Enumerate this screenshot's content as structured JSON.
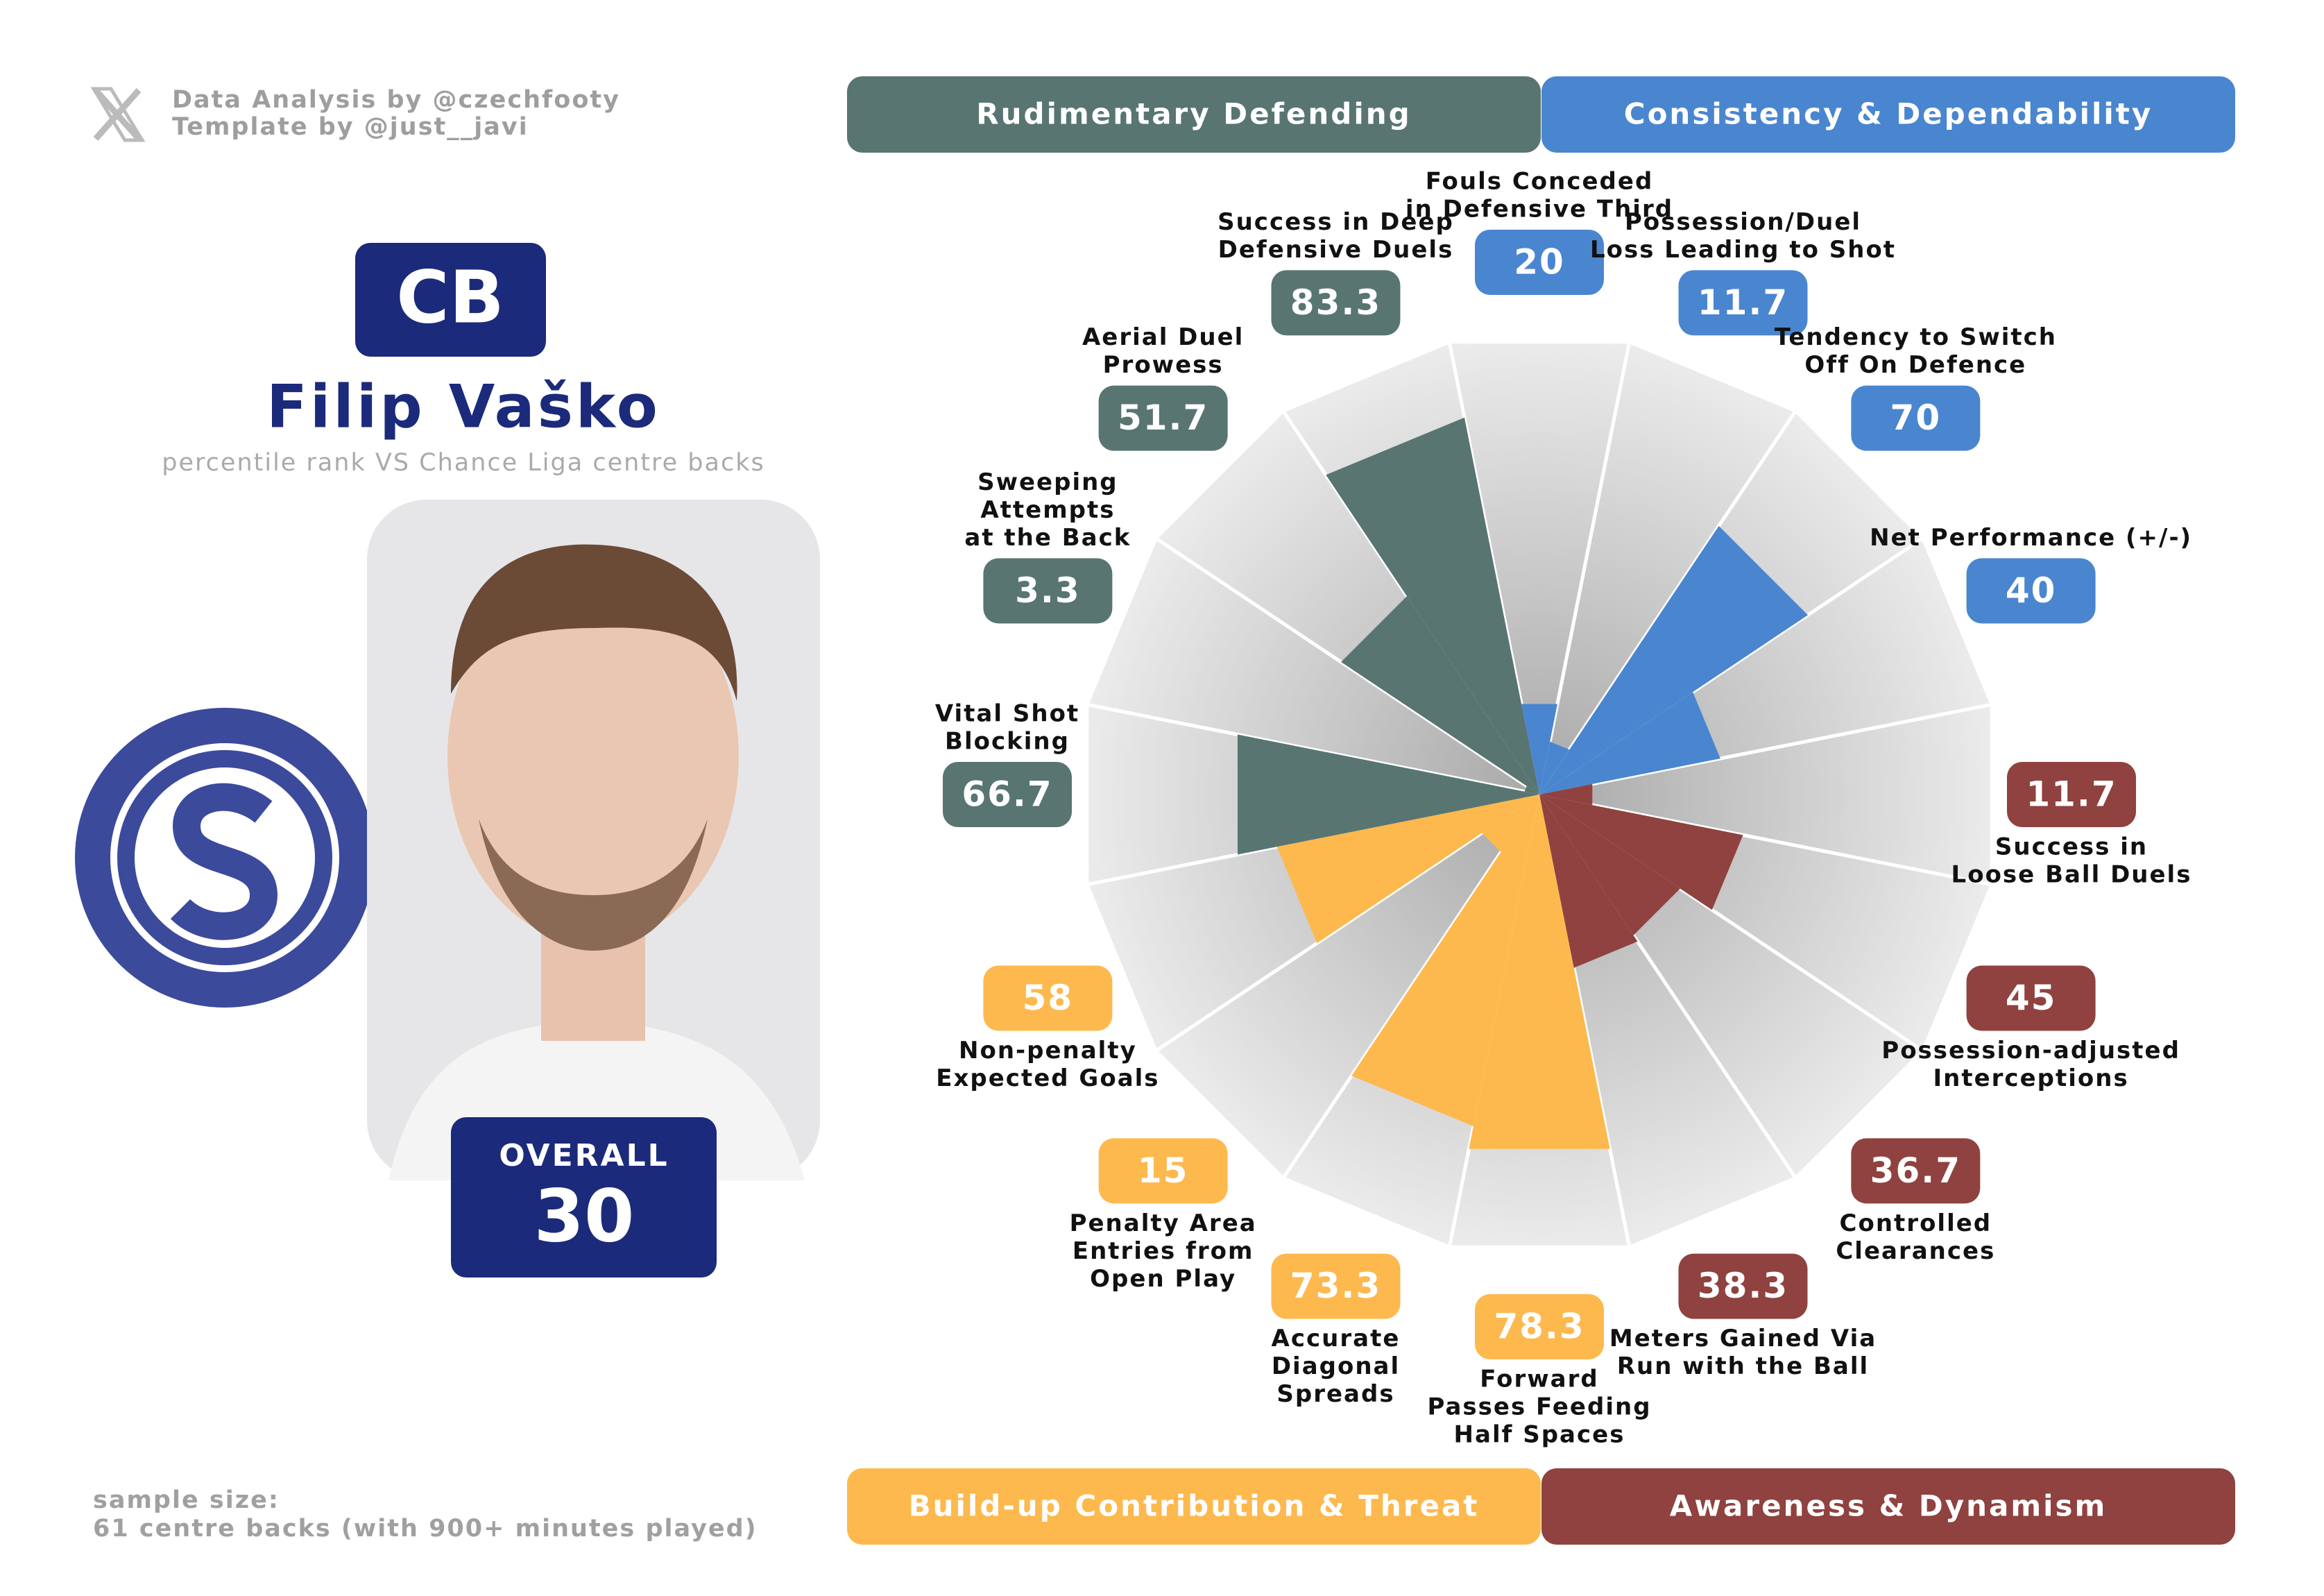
{
  "header": {
    "credits": [
      "Data Analysis by @czechfooty",
      "Template by @just__javi"
    ]
  },
  "player": {
    "position": "CB",
    "name": "Filip Vaško",
    "subtitle": "percentile rank VS Chance Liga centre backs",
    "overall_label": "OVERALL",
    "overall": 30
  },
  "footer": {
    "lines": [
      "sample size:",
      "61 centre backs (with 900+ minutes played)"
    ]
  },
  "chart_data": {
    "type": "pizza",
    "ylim": [
      0,
      100
    ],
    "series": [
      {
        "name": "Consistency & Dependability",
        "color": "#4a86cf",
        "categories": [
          [
            "Fouls Conceded",
            "in Defensive Third"
          ],
          [
            "Possession/Duel",
            "Loss Leading to Shot"
          ],
          [
            "Tendency to Switch",
            "Off On Defence"
          ],
          [
            "Net Performance (+/-)"
          ]
        ],
        "values": [
          20,
          11.7,
          70,
          40
        ]
      },
      {
        "name": "Awareness & Dynamism",
        "color": "#8f423f",
        "categories": [
          [
            "Success in",
            "Loose Ball Duels"
          ],
          [
            "Possession-adjusted",
            "Interceptions"
          ],
          [
            "Controlled",
            "Clearances"
          ],
          [
            "Meters Gained Via",
            "Run with the Ball"
          ]
        ],
        "values": [
          11.7,
          45,
          36.7,
          38.3
        ]
      },
      {
        "name": "Build-up Contribution & Threat",
        "color": "#fdb94e",
        "categories": [
          [
            "Forward",
            "Passes Feeding",
            "Half Spaces"
          ],
          [
            "Accurate",
            "Diagonal",
            "Spreads"
          ],
          [
            "Penalty Area",
            "Entries from",
            "Open Play"
          ],
          [
            "Non-penalty",
            "Expected Goals"
          ]
        ],
        "values": [
          78.3,
          73.3,
          15,
          58
        ]
      },
      {
        "name": "Rudimentary Defending",
        "color": "#587571",
        "categories": [
          [
            "Vital Shot",
            "Blocking"
          ],
          [
            "Sweeping",
            "Attempts",
            "at the Back"
          ],
          [
            "Aerial Duel",
            "Prowess"
          ],
          [
            "Success in Deep",
            "Defensive Duels"
          ]
        ],
        "values": [
          66.7,
          3.3,
          51.7,
          83.3
        ]
      }
    ]
  }
}
